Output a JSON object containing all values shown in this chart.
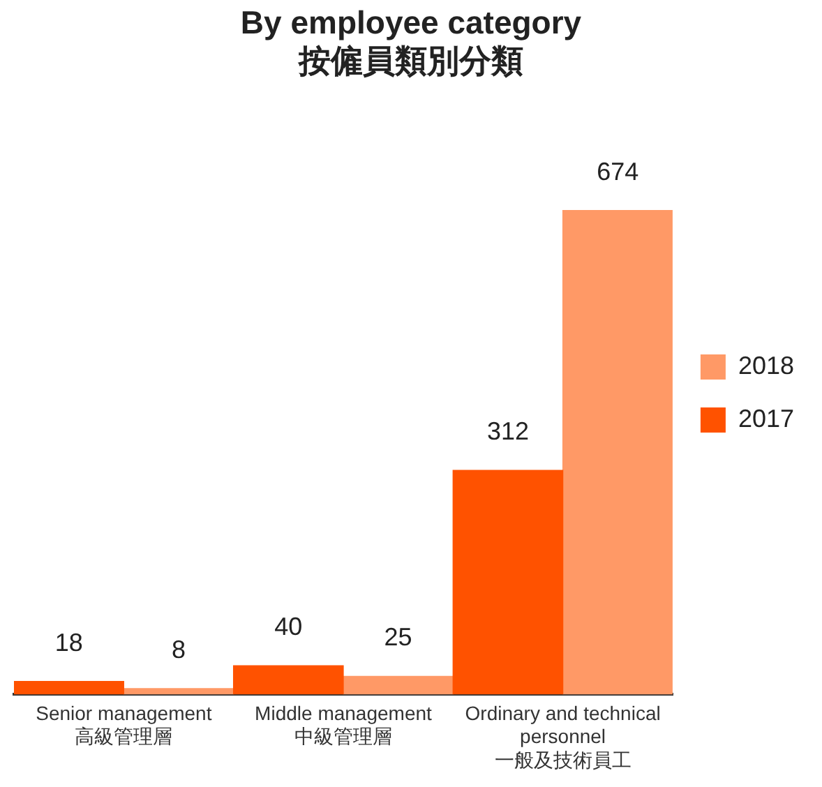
{
  "chart_data": {
    "type": "bar",
    "title": "By employee category\n按僱員類別分類",
    "categories": [
      "Senior management\n高級管理層",
      "Middle management\n中級管理層",
      "Ordinary and technical\npersonnel\n一般及技術員工"
    ],
    "series": [
      {
        "name": "2017",
        "color": "#ff5200",
        "values": [
          18,
          40,
          312
        ]
      },
      {
        "name": "2018",
        "color": "#ff9966",
        "values": [
          8,
          25,
          674
        ]
      }
    ],
    "data_labels": true,
    "grid": false,
    "legend": "right",
    "tick_labels": "x"
  }
}
